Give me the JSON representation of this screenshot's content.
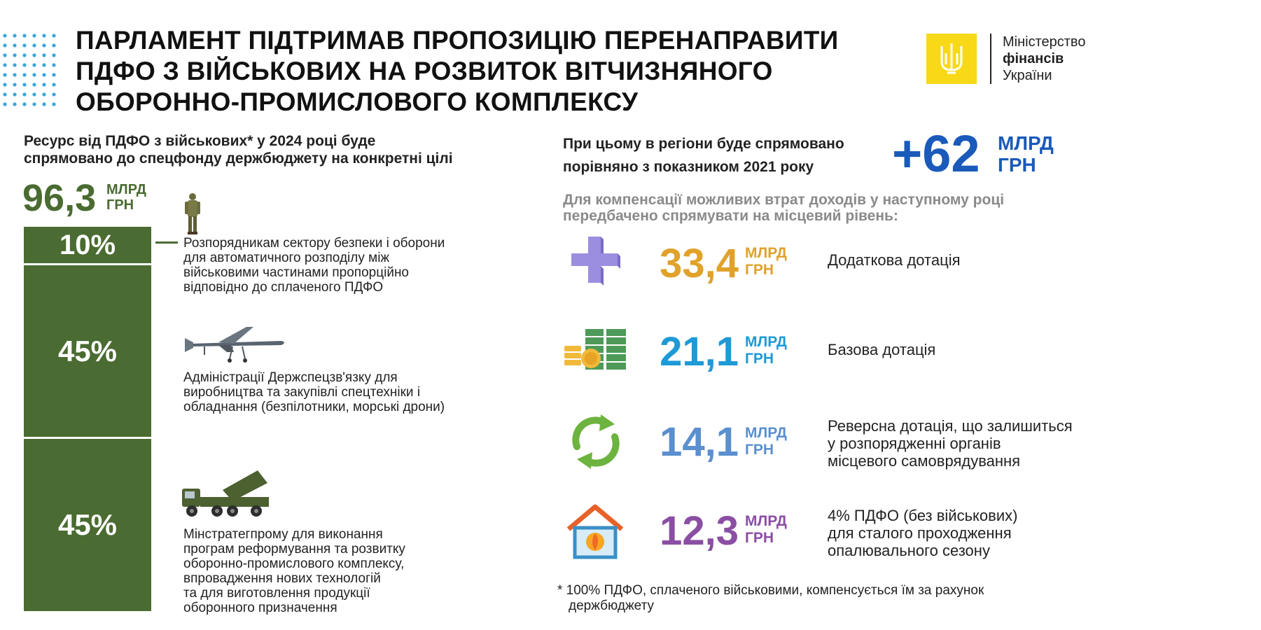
{
  "header": {
    "title_lines": [
      "ПАРЛАМЕНТ ПІДТРИМАВ ПРОПОЗИЦІЮ ПЕРЕНАПРАВИТИ",
      "ПДФО З ВІЙСЬКОВИХ НА РОЗВИТОК ВІТЧИЗНЯНОГО",
      "ОБОРОННО-ПРОМИСЛОВОГО КОМПЛЕКСУ"
    ],
    "logo": {
      "line1": "Міністерство",
      "line2": "фінансів",
      "line3": "України",
      "color": "#f7d917"
    }
  },
  "left": {
    "subtitle_lines": [
      "Ресурс від ПДФО з військових* у 2024 році буде",
      "спрямовано до спецфонду держбюджету на конкретні цілі"
    ],
    "total_value": "96,3",
    "unit_line1": "МЛРД",
    "unit_line2": "ГРН",
    "accent_color": "#4a6b31",
    "segments": [
      {
        "percent": "10%",
        "share": 10
      },
      {
        "percent": "45%",
        "share": 45
      },
      {
        "percent": "45%",
        "share": 45
      }
    ],
    "descriptions": [
      [
        "Розпорядникам сектору безпеки і оборони",
        "для автоматичного розподілу між",
        "військовими частинами пропорційно",
        "відповідно до сплаченого ПДФО"
      ],
      [
        "Адміністрації Держспецзв'язку для",
        "виробництва та закупівлі спецтехніки і",
        "обладнання (безпілотники, морські дрони)"
      ],
      [
        "Мінстратегпрому для виконання",
        "програм реформування та розвитку",
        "оборонно-промислового комплексу,",
        "впровадження нових технологій",
        "та для виготовлення продукції",
        "оборонного призначення"
      ]
    ]
  },
  "right": {
    "heading_lines": [
      "При цьому в регіони буде спрямовано",
      "порівняно з показником 2021 року"
    ],
    "plus_value": "+62",
    "plus_unit_line1": "МЛРД",
    "plus_unit_line2": "ГРН",
    "plus_color": "#1a5aba",
    "grey_lines": [
      "Для компенсації можливих втрат доходів у наступному році",
      "передбачено спрямувати на місцевий рівень:"
    ],
    "items": [
      {
        "value": "33,4",
        "unit1": "МЛРД",
        "unit2": "ГРН",
        "color": "#e0a22a",
        "icon": "plus-icon",
        "desc": [
          "Додаткова дотація"
        ]
      },
      {
        "value": "21,1",
        "unit1": "МЛРД",
        "unit2": "ГРН",
        "color": "#1e9ad6",
        "icon": "money-stack-icon",
        "desc": [
          "Базова дотація"
        ]
      },
      {
        "value": "14,1",
        "unit1": "МЛРД",
        "unit2": "ГРН",
        "color": "#5b8fcf",
        "icon": "recycle-arrows-icon",
        "desc": [
          "Реверсна дотація, що залишиться",
          "у розпорядженні органів",
          "місцевого самоврядування"
        ]
      },
      {
        "value": "12,3",
        "unit1": "МЛРД",
        "unit2": "ГРН",
        "color": "#8a4ea3",
        "icon": "house-heating-icon",
        "desc": [
          "4% ПДФО (без військових)",
          "для сталого проходження",
          "опалювального сезону"
        ]
      }
    ],
    "footnote_lines": [
      "* 100% ПДФО, сплаченого військовими, компенсується їм за рахунок",
      "  держбюджету"
    ]
  }
}
